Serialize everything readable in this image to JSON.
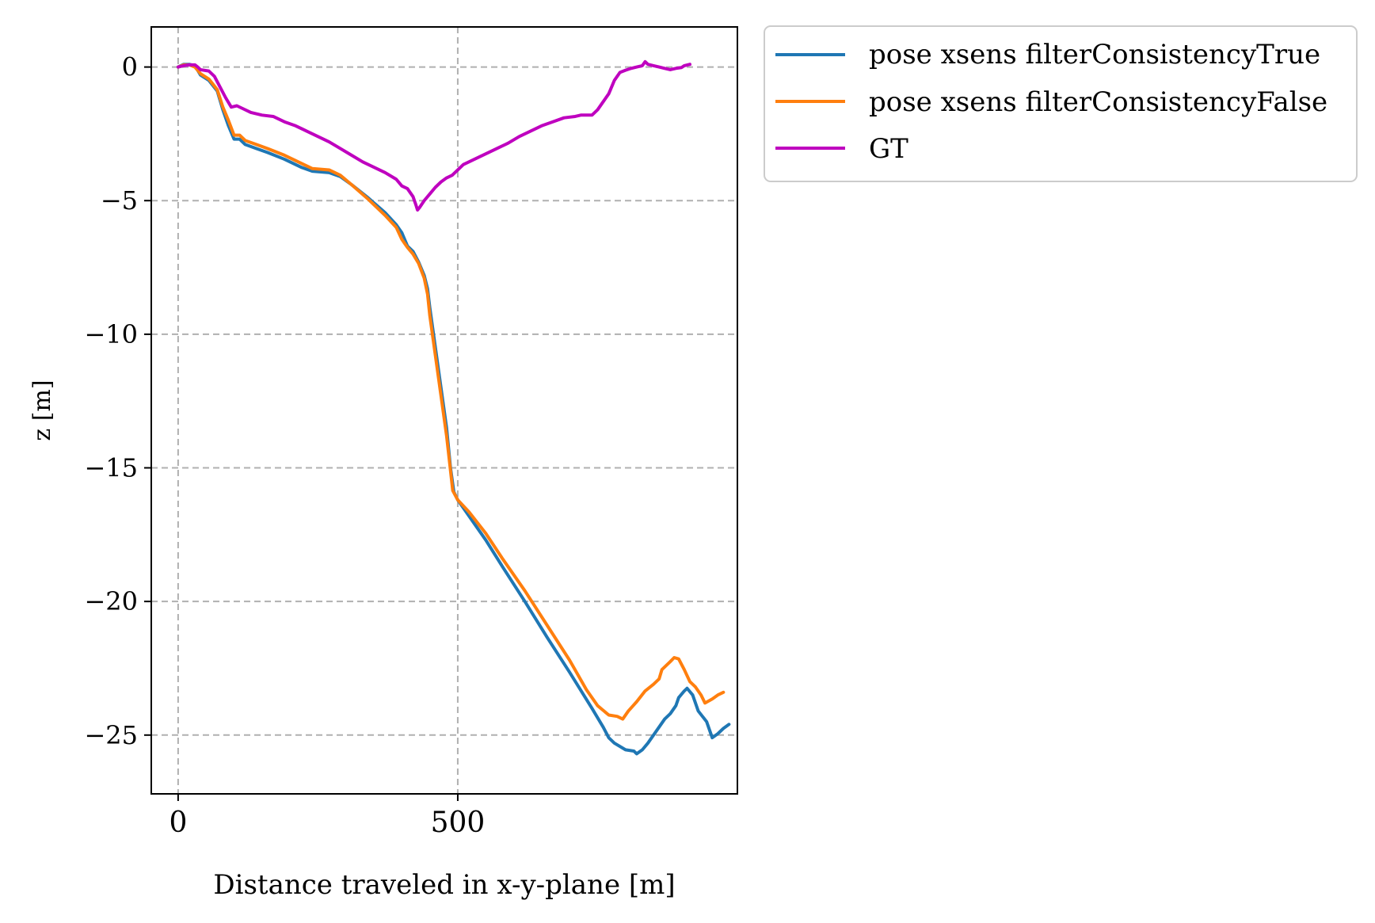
{
  "chart_data": {
    "type": "line",
    "title": "",
    "xlabel": "Distance traveled in x-y-plane [m]",
    "ylabel": "z [m]",
    "xlim": [
      -48,
      1000
    ],
    "ylim": [
      -27.2,
      1.5
    ],
    "xticks": [
      {
        "value": 0,
        "label": "0"
      },
      {
        "value": 500,
        "label": "500"
      }
    ],
    "yticks": [
      {
        "value": 0,
        "label": "0"
      },
      {
        "value": -5,
        "label": "−5"
      },
      {
        "value": -10,
        "label": "−10"
      },
      {
        "value": -15,
        "label": "−15"
      },
      {
        "value": -20,
        "label": "−20"
      },
      {
        "value": -25,
        "label": "−25"
      }
    ],
    "grid": true,
    "legend_position": "outside-top-right",
    "series": [
      {
        "name": "pose xsens filterConsistencyTrue",
        "color": "#1f77b4",
        "points": [
          [
            0,
            0
          ],
          [
            10,
            0.1
          ],
          [
            20,
            0.1
          ],
          [
            30,
            0.05
          ],
          [
            40,
            -0.3
          ],
          [
            55,
            -0.5
          ],
          [
            70,
            -0.9
          ],
          [
            80,
            -1.6
          ],
          [
            90,
            -2.2
          ],
          [
            100,
            -2.7
          ],
          [
            110,
            -2.7
          ],
          [
            120,
            -2.9
          ],
          [
            140,
            -3.05
          ],
          [
            160,
            -3.2
          ],
          [
            190,
            -3.45
          ],
          [
            220,
            -3.75
          ],
          [
            240,
            -3.9
          ],
          [
            270,
            -3.95
          ],
          [
            290,
            -4.1
          ],
          [
            310,
            -4.4
          ],
          [
            340,
            -4.9
          ],
          [
            370,
            -5.45
          ],
          [
            390,
            -5.9
          ],
          [
            400,
            -6.2
          ],
          [
            405,
            -6.45
          ],
          [
            410,
            -6.7
          ],
          [
            420,
            -6.9
          ],
          [
            430,
            -7.3
          ],
          [
            440,
            -7.8
          ],
          [
            446,
            -8.3
          ],
          [
            450,
            -9.0
          ],
          [
            460,
            -10.5
          ],
          [
            470,
            -12.0
          ],
          [
            480,
            -13.5
          ],
          [
            487,
            -15.0
          ],
          [
            493,
            -15.9
          ],
          [
            500,
            -16.2
          ],
          [
            520,
            -16.8
          ],
          [
            550,
            -17.7
          ],
          [
            580,
            -18.7
          ],
          [
            620,
            -20.0
          ],
          [
            660,
            -21.35
          ],
          [
            700,
            -22.65
          ],
          [
            740,
            -24.0
          ],
          [
            760,
            -24.7
          ],
          [
            770,
            -25.1
          ],
          [
            780,
            -25.3
          ],
          [
            800,
            -25.55
          ],
          [
            815,
            -25.6
          ],
          [
            820,
            -25.7
          ],
          [
            830,
            -25.55
          ],
          [
            840,
            -25.3
          ],
          [
            850,
            -25.0
          ],
          [
            860,
            -24.7
          ],
          [
            870,
            -24.4
          ],
          [
            880,
            -24.2
          ],
          [
            890,
            -23.9
          ],
          [
            895,
            -23.6
          ],
          [
            905,
            -23.35
          ],
          [
            910,
            -23.25
          ],
          [
            920,
            -23.5
          ],
          [
            930,
            -24.1
          ],
          [
            945,
            -24.5
          ],
          [
            955,
            -25.1
          ],
          [
            965,
            -24.95
          ],
          [
            975,
            -24.75
          ],
          [
            985,
            -24.6
          ]
        ]
      },
      {
        "name": "pose xsens filterConsistencyFalse",
        "color": "#ff7f0e",
        "points": [
          [
            0,
            0
          ],
          [
            10,
            0.08
          ],
          [
            20,
            0.08
          ],
          [
            30,
            0.0
          ],
          [
            40,
            -0.25
          ],
          [
            55,
            -0.45
          ],
          [
            70,
            -0.85
          ],
          [
            80,
            -1.5
          ],
          [
            90,
            -2.0
          ],
          [
            100,
            -2.55
          ],
          [
            110,
            -2.55
          ],
          [
            120,
            -2.75
          ],
          [
            140,
            -2.9
          ],
          [
            160,
            -3.05
          ],
          [
            190,
            -3.3
          ],
          [
            220,
            -3.6
          ],
          [
            240,
            -3.8
          ],
          [
            270,
            -3.85
          ],
          [
            290,
            -4.05
          ],
          [
            310,
            -4.4
          ],
          [
            340,
            -4.95
          ],
          [
            370,
            -5.55
          ],
          [
            390,
            -6.0
          ],
          [
            400,
            -6.45
          ],
          [
            410,
            -6.75
          ],
          [
            420,
            -7.0
          ],
          [
            430,
            -7.35
          ],
          [
            440,
            -7.9
          ],
          [
            446,
            -8.5
          ],
          [
            450,
            -9.3
          ],
          [
            460,
            -10.8
          ],
          [
            470,
            -12.3
          ],
          [
            480,
            -13.8
          ],
          [
            487,
            -15.1
          ],
          [
            491,
            -15.85
          ],
          [
            500,
            -16.2
          ],
          [
            520,
            -16.65
          ],
          [
            550,
            -17.45
          ],
          [
            580,
            -18.4
          ],
          [
            620,
            -19.6
          ],
          [
            660,
            -20.9
          ],
          [
            700,
            -22.2
          ],
          [
            730,
            -23.3
          ],
          [
            750,
            -23.9
          ],
          [
            770,
            -24.25
          ],
          [
            785,
            -24.3
          ],
          [
            795,
            -24.4
          ],
          [
            805,
            -24.1
          ],
          [
            820,
            -23.75
          ],
          [
            835,
            -23.35
          ],
          [
            850,
            -23.1
          ],
          [
            860,
            -22.9
          ],
          [
            865,
            -22.55
          ],
          [
            880,
            -22.25
          ],
          [
            887,
            -22.1
          ],
          [
            895,
            -22.15
          ],
          [
            905,
            -22.55
          ],
          [
            915,
            -23.0
          ],
          [
            925,
            -23.2
          ],
          [
            935,
            -23.5
          ],
          [
            942,
            -23.8
          ],
          [
            955,
            -23.65
          ],
          [
            965,
            -23.5
          ],
          [
            975,
            -23.4
          ]
        ]
      },
      {
        "name": "GT",
        "color": "#bf00bf",
        "points": [
          [
            0,
            0
          ],
          [
            10,
            0.05
          ],
          [
            20,
            0.08
          ],
          [
            30,
            0.08
          ],
          [
            35,
            0.0
          ],
          [
            40,
            -0.1
          ],
          [
            55,
            -0.15
          ],
          [
            65,
            -0.35
          ],
          [
            75,
            -0.75
          ],
          [
            85,
            -1.15
          ],
          [
            95,
            -1.5
          ],
          [
            105,
            -1.45
          ],
          [
            115,
            -1.55
          ],
          [
            130,
            -1.7
          ],
          [
            150,
            -1.8
          ],
          [
            170,
            -1.85
          ],
          [
            190,
            -2.05
          ],
          [
            210,
            -2.2
          ],
          [
            230,
            -2.4
          ],
          [
            250,
            -2.6
          ],
          [
            270,
            -2.8
          ],
          [
            290,
            -3.05
          ],
          [
            310,
            -3.3
          ],
          [
            330,
            -3.55
          ],
          [
            350,
            -3.75
          ],
          [
            370,
            -3.95
          ],
          [
            390,
            -4.2
          ],
          [
            400,
            -4.45
          ],
          [
            410,
            -4.55
          ],
          [
            420,
            -4.85
          ],
          [
            425,
            -5.15
          ],
          [
            428,
            -5.35
          ],
          [
            432,
            -5.25
          ],
          [
            440,
            -5.0
          ],
          [
            450,
            -4.75
          ],
          [
            460,
            -4.5
          ],
          [
            470,
            -4.3
          ],
          [
            480,
            -4.15
          ],
          [
            490,
            -4.05
          ],
          [
            500,
            -3.85
          ],
          [
            510,
            -3.65
          ],
          [
            530,
            -3.45
          ],
          [
            550,
            -3.25
          ],
          [
            570,
            -3.05
          ],
          [
            590,
            -2.85
          ],
          [
            610,
            -2.6
          ],
          [
            630,
            -2.4
          ],
          [
            650,
            -2.2
          ],
          [
            670,
            -2.05
          ],
          [
            690,
            -1.9
          ],
          [
            710,
            -1.85
          ],
          [
            720,
            -1.8
          ],
          [
            730,
            -1.8
          ],
          [
            740,
            -1.8
          ],
          [
            750,
            -1.6
          ],
          [
            760,
            -1.3
          ],
          [
            770,
            -1.0
          ],
          [
            780,
            -0.5
          ],
          [
            790,
            -0.2
          ],
          [
            800,
            -0.12
          ],
          [
            810,
            -0.05
          ],
          [
            820,
            0.0
          ],
          [
            830,
            0.05
          ],
          [
            835,
            0.2
          ],
          [
            840,
            0.1
          ],
          [
            850,
            0.05
          ],
          [
            860,
            0.0
          ],
          [
            870,
            -0.05
          ],
          [
            880,
            -0.1
          ],
          [
            890,
            -0.05
          ],
          [
            900,
            -0.02
          ],
          [
            905,
            0.05
          ],
          [
            915,
            0.1
          ]
        ]
      }
    ]
  }
}
